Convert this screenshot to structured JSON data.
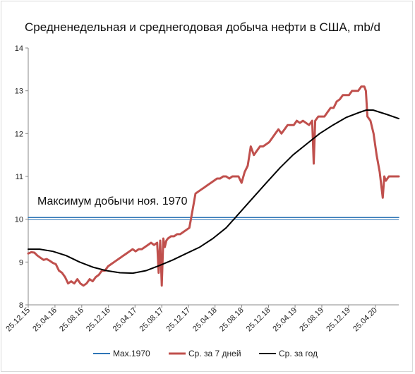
{
  "chart_data": {
    "type": "line",
    "title": "Средненедельная и среднегодовая добыча нефти в США, mb/d",
    "xlabel": "",
    "ylabel": "",
    "ylim": [
      8,
      14
    ],
    "yticks": [
      8,
      9,
      10,
      11,
      12,
      13,
      14
    ],
    "xlim": [
      "2015-12-25",
      "2020-08-10"
    ],
    "x_tick_labels": [
      "25.12.15",
      "25.04.16",
      "25.08.16",
      "25.12.16",
      "25.04.17",
      "25.08.17",
      "25.12.17",
      "25.04.18",
      "25.08.18",
      "25.12.18",
      "25.04.19",
      "25.08.19",
      "25.12.19",
      "25.04.20"
    ],
    "x_tick_dates": [
      "2015-12-25",
      "2016-04-25",
      "2016-08-25",
      "2016-12-25",
      "2017-04-25",
      "2017-08-25",
      "2017-12-25",
      "2018-04-25",
      "2018-08-25",
      "2018-12-25",
      "2019-04-25",
      "2019-08-25",
      "2019-12-25",
      "2020-04-25"
    ],
    "grid": false,
    "legend_position": "bottom",
    "annotation": "Максимум добычи ноя. 1970",
    "colors": {
      "max1970": "#2e75b6",
      "weekly": "#c0504d",
      "annual": "#000000"
    },
    "series": [
      {
        "name": "Max.1970",
        "x": [
          "2015-12-25",
          "2020-08-10"
        ],
        "y": [
          10.04,
          10.04
        ]
      },
      {
        "name": "Ср. за 7 дней",
        "x": [
          "2015-12-25",
          "2016-01-08",
          "2016-01-22",
          "2016-02-05",
          "2016-02-19",
          "2016-03-04",
          "2016-03-18",
          "2016-04-01",
          "2016-04-15",
          "2016-04-29",
          "2016-05-13",
          "2016-05-27",
          "2016-06-10",
          "2016-06-24",
          "2016-07-08",
          "2016-07-22",
          "2016-08-05",
          "2016-08-19",
          "2016-09-02",
          "2016-09-16",
          "2016-09-30",
          "2016-10-14",
          "2016-10-28",
          "2016-11-11",
          "2016-11-25",
          "2016-12-09",
          "2016-12-23",
          "2017-01-06",
          "2017-01-20",
          "2017-02-03",
          "2017-02-17",
          "2017-03-03",
          "2017-03-17",
          "2017-03-31",
          "2017-04-14",
          "2017-04-28",
          "2017-05-12",
          "2017-05-26",
          "2017-06-09",
          "2017-06-23",
          "2017-07-07",
          "2017-07-21",
          "2017-08-04",
          "2017-08-11",
          "2017-08-18",
          "2017-08-25",
          "2017-09-01",
          "2017-09-08",
          "2017-09-15",
          "2017-09-22",
          "2017-10-06",
          "2017-10-20",
          "2017-11-03",
          "2017-11-17",
          "2017-12-01",
          "2017-12-15",
          "2017-12-29",
          "2018-01-12",
          "2018-01-26",
          "2018-02-09",
          "2018-02-23",
          "2018-03-09",
          "2018-03-23",
          "2018-04-06",
          "2018-04-20",
          "2018-05-04",
          "2018-05-18",
          "2018-06-01",
          "2018-06-15",
          "2018-06-29",
          "2018-07-13",
          "2018-07-27",
          "2018-08-10",
          "2018-08-24",
          "2018-09-07",
          "2018-09-21",
          "2018-10-05",
          "2018-10-19",
          "2018-11-02",
          "2018-11-16",
          "2018-11-30",
          "2018-12-14",
          "2018-12-28",
          "2019-01-11",
          "2019-01-25",
          "2019-02-08",
          "2019-02-22",
          "2019-03-08",
          "2019-03-22",
          "2019-04-05",
          "2019-04-19",
          "2019-05-03",
          "2019-05-17",
          "2019-05-31",
          "2019-06-14",
          "2019-06-28",
          "2019-07-12",
          "2019-07-19",
          "2019-07-26",
          "2019-08-09",
          "2019-08-23",
          "2019-09-06",
          "2019-09-20",
          "2019-10-04",
          "2019-10-18",
          "2019-11-01",
          "2019-11-15",
          "2019-11-29",
          "2019-12-13",
          "2019-12-27",
          "2020-01-10",
          "2020-01-24",
          "2020-02-07",
          "2020-02-21",
          "2020-03-06",
          "2020-03-13",
          "2020-03-20",
          "2020-04-03",
          "2020-04-17",
          "2020-05-01",
          "2020-05-15",
          "2020-05-29",
          "2020-06-05",
          "2020-06-12",
          "2020-06-26",
          "2020-07-10",
          "2020-07-24",
          "2020-08-10"
        ],
        "y": [
          9.2,
          9.23,
          9.22,
          9.15,
          9.1,
          9.05,
          9.07,
          9.03,
          8.98,
          8.95,
          8.8,
          8.75,
          8.65,
          8.5,
          8.55,
          8.5,
          8.6,
          8.5,
          8.45,
          8.5,
          8.6,
          8.55,
          8.65,
          8.7,
          8.8,
          8.8,
          8.9,
          8.95,
          9.0,
          9.05,
          9.1,
          9.15,
          9.2,
          9.25,
          9.3,
          9.25,
          9.3,
          9.3,
          9.35,
          9.4,
          9.45,
          9.4,
          9.45,
          8.75,
          9.5,
          8.45,
          9.55,
          9.35,
          9.5,
          9.55,
          9.6,
          9.6,
          9.65,
          9.65,
          9.7,
          9.75,
          9.8,
          10.2,
          10.6,
          10.65,
          10.7,
          10.75,
          10.8,
          10.85,
          10.9,
          10.95,
          10.95,
          11.0,
          11.0,
          10.95,
          11.0,
          11.0,
          11.0,
          10.85,
          11.1,
          11.25,
          11.7,
          11.5,
          11.6,
          11.7,
          11.7,
          11.75,
          11.8,
          11.9,
          12.0,
          12.1,
          12.0,
          12.1,
          12.2,
          12.2,
          12.2,
          12.3,
          12.25,
          12.3,
          12.25,
          12.2,
          12.3,
          11.3,
          12.3,
          12.4,
          12.4,
          12.4,
          12.5,
          12.6,
          12.6,
          12.75,
          12.8,
          12.9,
          12.9,
          12.9,
          13.0,
          13.0,
          13.0,
          13.1,
          13.1,
          13.0,
          12.4,
          12.3,
          12.0,
          11.5,
          11.1,
          10.5,
          11.0,
          10.9,
          11.0,
          11.0,
          11.0,
          11.0
        ]
      },
      {
        "name": "Ср. за год",
        "x": [
          "2015-12-25",
          "2016-02-15",
          "2016-04-15",
          "2016-06-15",
          "2016-08-15",
          "2016-10-15",
          "2016-12-15",
          "2017-02-15",
          "2017-04-15",
          "2017-06-15",
          "2017-08-15",
          "2017-10-15",
          "2017-12-15",
          "2018-02-15",
          "2018-04-15",
          "2018-06-15",
          "2018-08-15",
          "2018-10-15",
          "2018-12-15",
          "2019-02-15",
          "2019-04-15",
          "2019-06-15",
          "2019-08-15",
          "2019-10-15",
          "2019-12-15",
          "2020-02-15",
          "2020-03-15",
          "2020-04-15",
          "2020-05-15",
          "2020-06-15",
          "2020-08-10"
        ],
        "y": [
          9.3,
          9.3,
          9.25,
          9.15,
          9.0,
          8.88,
          8.8,
          8.75,
          8.74,
          8.8,
          8.92,
          9.05,
          9.2,
          9.35,
          9.55,
          9.8,
          10.15,
          10.5,
          10.85,
          11.2,
          11.5,
          11.75,
          12.0,
          12.2,
          12.38,
          12.5,
          12.55,
          12.55,
          12.5,
          12.45,
          12.35
        ]
      }
    ]
  }
}
